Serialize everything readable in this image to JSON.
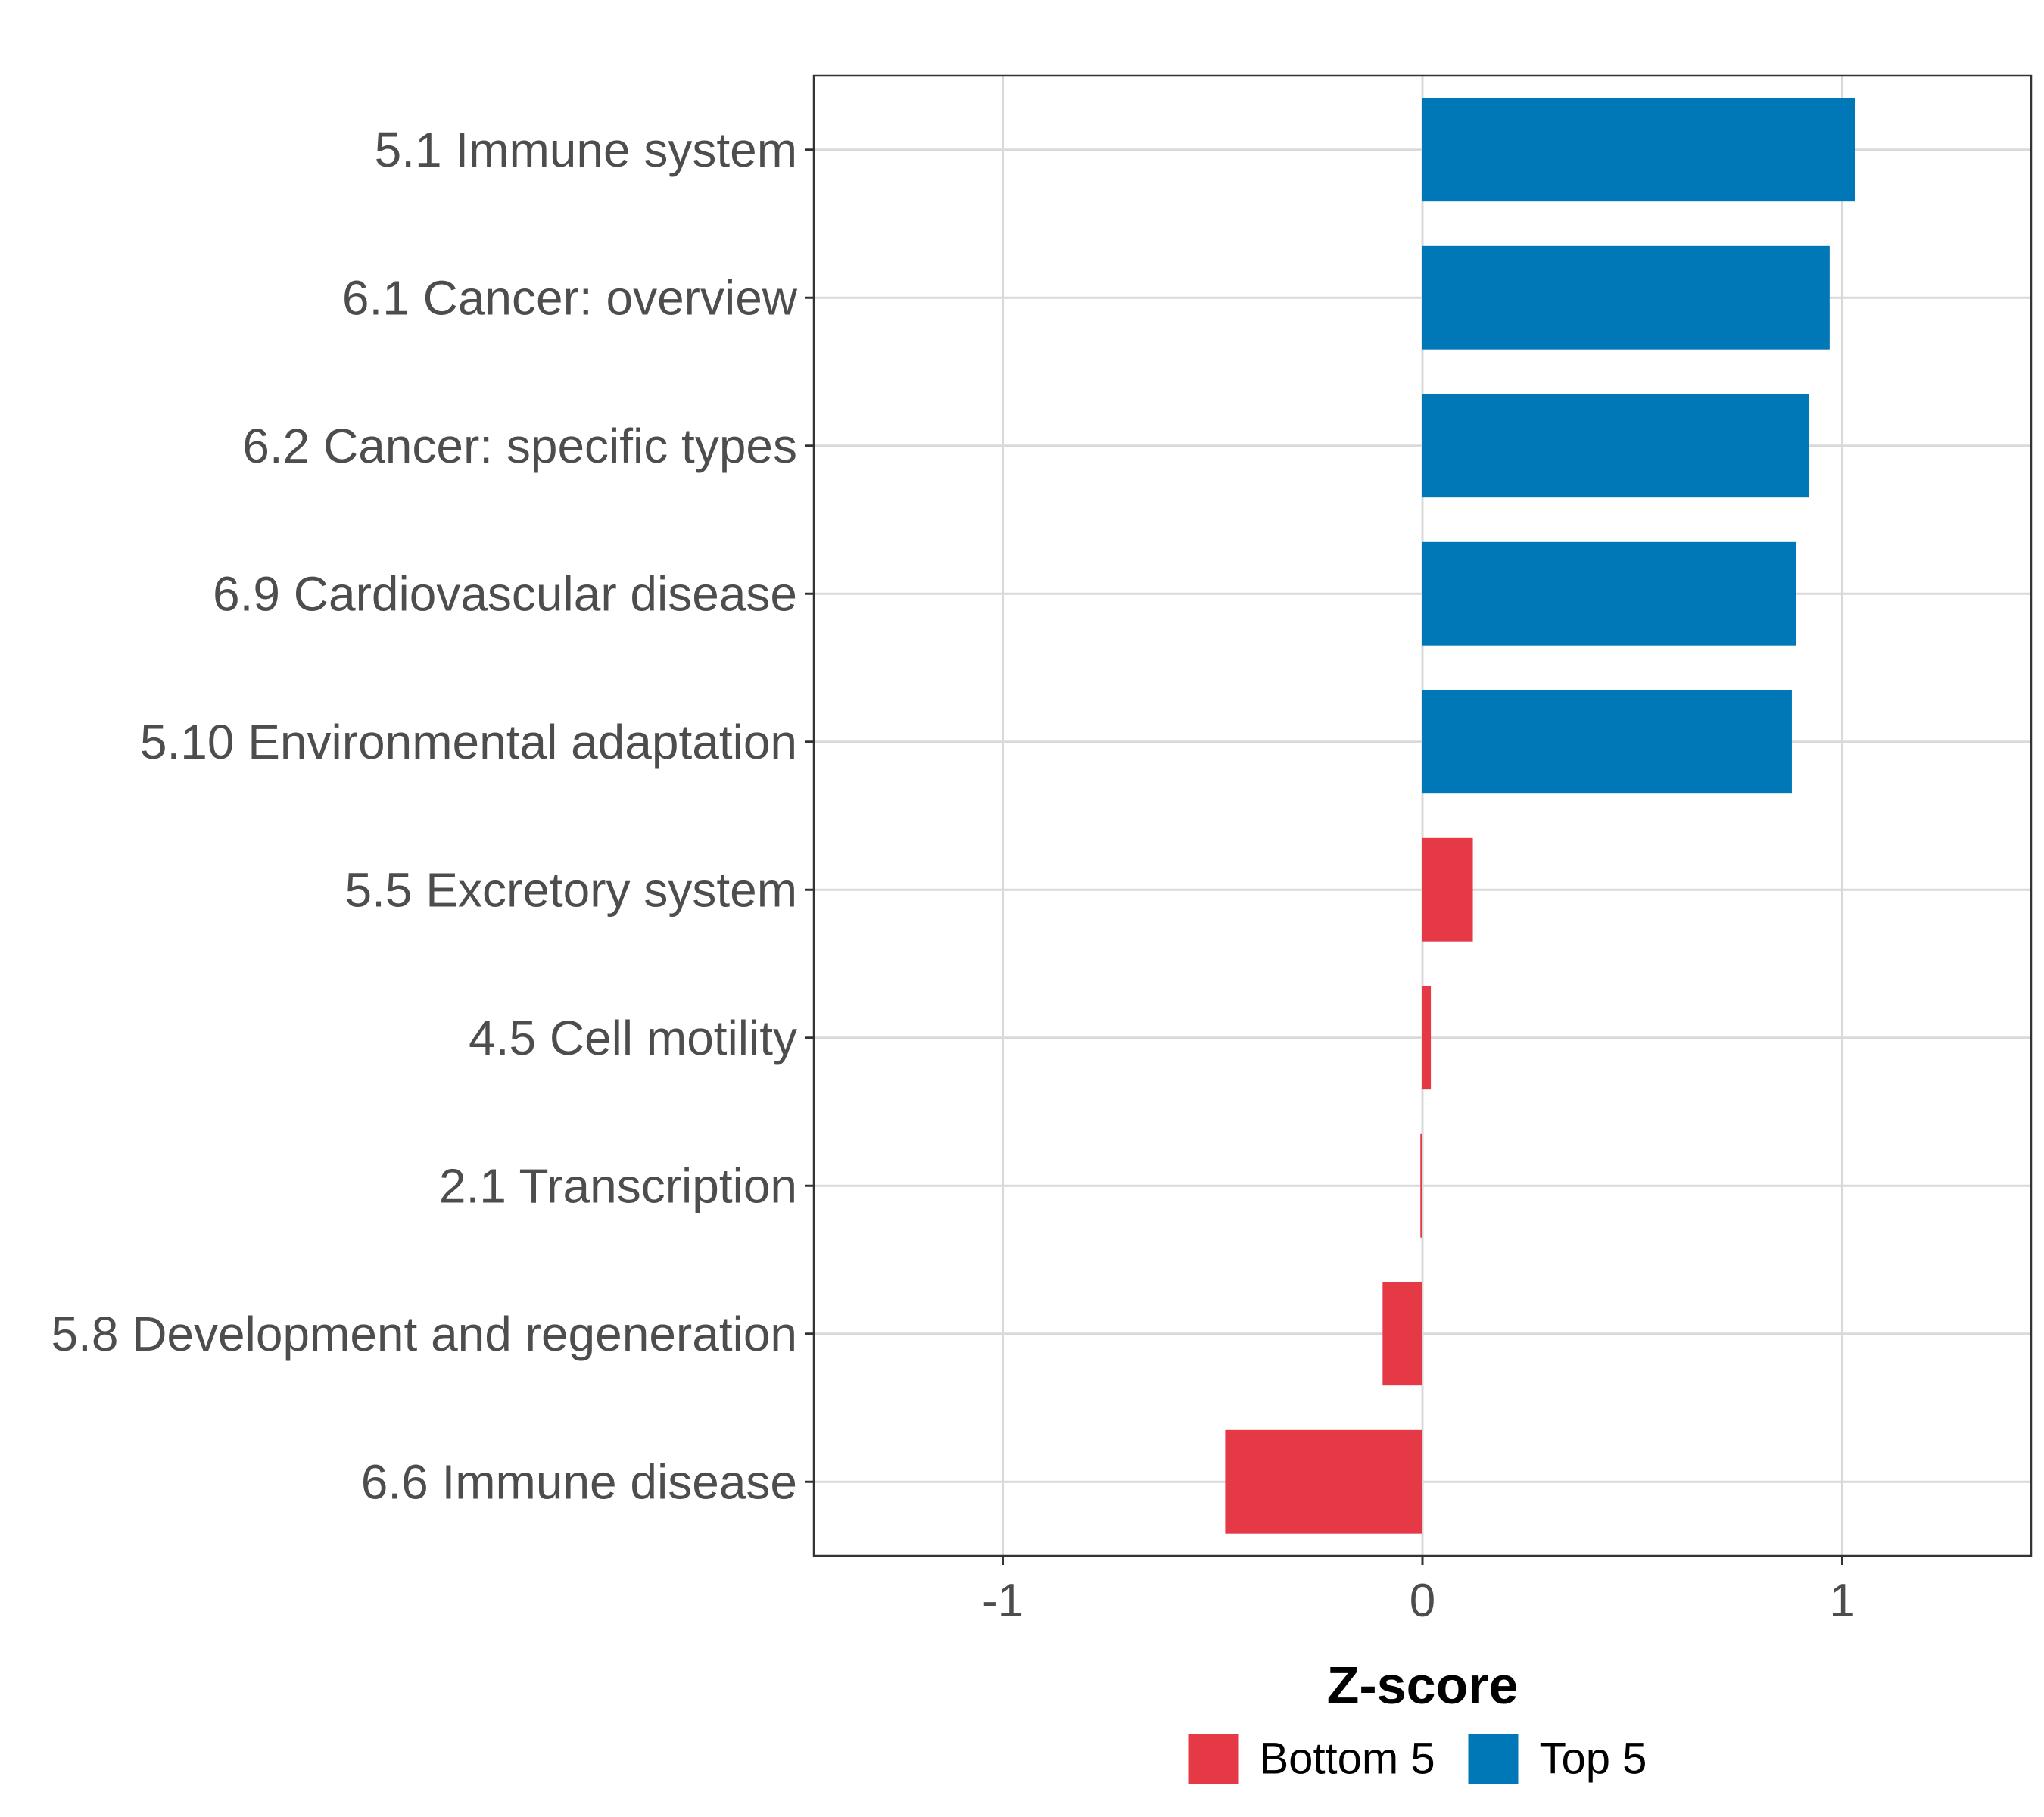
{
  "chart_data": {
    "type": "bar",
    "orientation": "horizontal",
    "title": "",
    "xlabel": "Z-score",
    "ylabel": "",
    "xlim": [
      -1.45,
      1.45
    ],
    "xticks": [
      -1,
      0,
      1
    ],
    "xtick_labels": [
      "-1",
      "0",
      "1"
    ],
    "grid": true,
    "legend_position": "bottom",
    "categories": [
      "5.1 Immune system",
      "6.1 Cancer: overview",
      "6.2 Cancer: specific types",
      "6.9 Cardiovascular disease",
      "5.10 Environmental adaptation",
      "5.5 Excretory system",
      "4.5 Cell motility",
      "2.1 Transcription",
      "5.8 Development and regeneration",
      "6.6 Immune disease"
    ],
    "values": [
      1.03,
      0.97,
      0.92,
      0.89,
      0.88,
      0.12,
      0.02,
      -0.005,
      -0.095,
      -0.47
    ],
    "groups": [
      "Top 5",
      "Top 5",
      "Top 5",
      "Top 5",
      "Top 5",
      "Bottom 5",
      "Bottom 5",
      "Bottom 5",
      "Bottom 5",
      "Bottom 5"
    ],
    "legend": [
      {
        "name": "Bottom 5",
        "color": "#E63946"
      },
      {
        "name": "Top 5",
        "color": "#0077B6"
      }
    ]
  }
}
